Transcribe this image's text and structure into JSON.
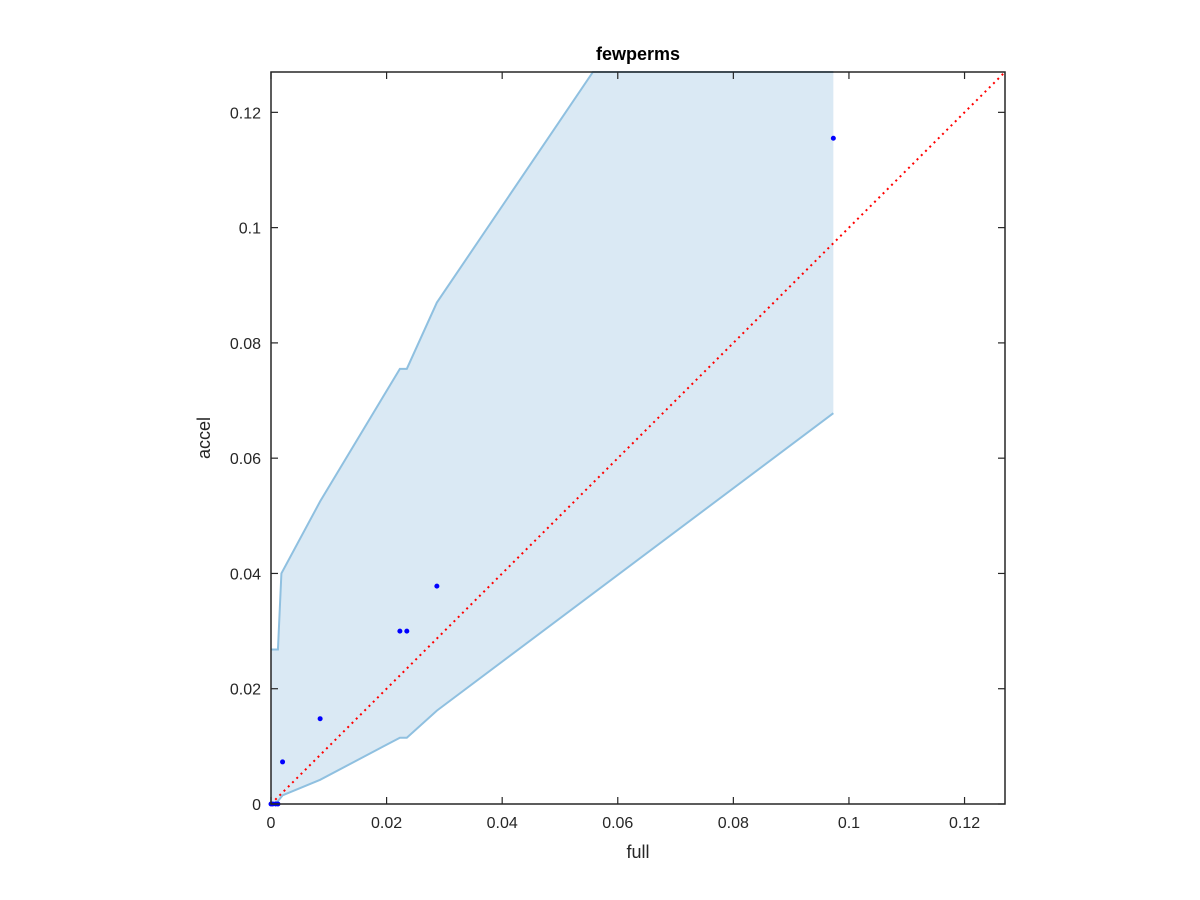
{
  "chart_data": {
    "type": "scatter",
    "title": "fewperms",
    "xlabel": "full",
    "ylabel": "accel",
    "xlim": [
      0,
      0.127
    ],
    "ylim": [
      0,
      0.127
    ],
    "xticks": [
      0,
      0.02,
      0.04,
      0.06,
      0.08,
      0.1,
      0.12
    ],
    "yticks": [
      0,
      0.02,
      0.04,
      0.06,
      0.08,
      0.1,
      0.12
    ],
    "xtick_labels": [
      "0",
      "0.02",
      "0.04",
      "0.06",
      "0.08",
      "0.1",
      "0.12"
    ],
    "ytick_labels": [
      "0",
      "0.02",
      "0.04",
      "0.06",
      "0.08",
      "0.1",
      "0.12"
    ],
    "grid": false,
    "points": {
      "x": [
        0.0,
        0.0003,
        0.0008,
        0.0012,
        0.002,
        0.0085,
        0.0223,
        0.0235,
        0.0287,
        0.0973
      ],
      "y": [
        0.0,
        0.0,
        0.0,
        0.0,
        0.0073,
        0.0148,
        0.03,
        0.03,
        0.0378,
        0.1155
      ],
      "color": "#0000ff"
    },
    "reference_line": {
      "x": [
        0,
        0.127
      ],
      "y": [
        0,
        0.127
      ],
      "color": "#ff0000",
      "style": "dotted"
    },
    "band": {
      "fill_color": "#dae9f4",
      "edge_color": "#8fc0e0",
      "upper": {
        "x": [
          0.0,
          0.0003,
          0.0012,
          0.0018,
          0.0085,
          0.0223,
          0.0235,
          0.0287,
          0.0557,
          0.0973
        ],
        "y": [
          0.0268,
          0.0268,
          0.0268,
          0.04,
          0.0525,
          0.0755,
          0.0755,
          0.087,
          0.127,
          0.127
        ]
      },
      "lower": {
        "x": [
          0.0,
          0.0003,
          0.0012,
          0.002,
          0.0085,
          0.0223,
          0.0235,
          0.0287,
          0.0973
        ],
        "y": [
          0.0,
          0.0,
          0.0005,
          0.0015,
          0.0042,
          0.0115,
          0.0115,
          0.0162,
          0.0678
        ]
      }
    }
  }
}
